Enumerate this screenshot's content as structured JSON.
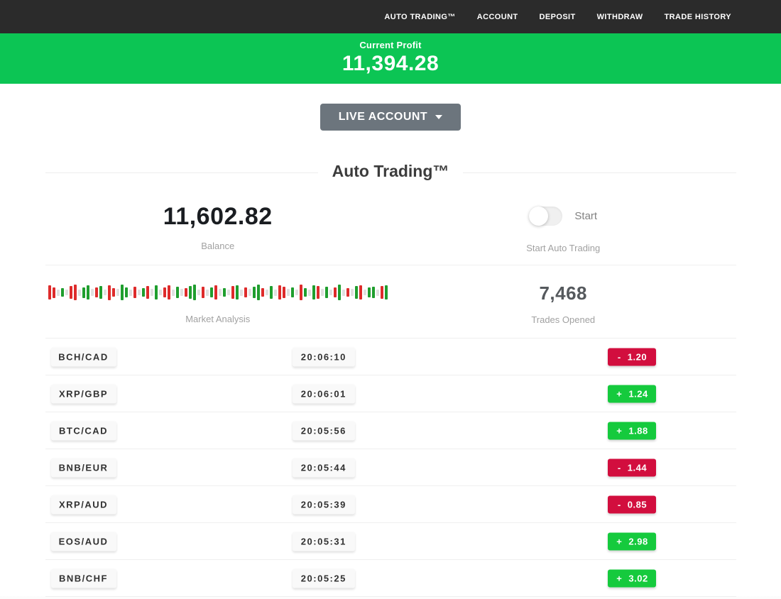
{
  "nav": {
    "items": [
      "AUTO TRADING™",
      "ACCOUNT",
      "DEPOSIT",
      "WITHDRAW",
      "TRADE HISTORY"
    ]
  },
  "profit_banner": {
    "label": "Current Profit",
    "value": "11,394.28"
  },
  "account_selector": {
    "label": "LIVE ACCOUNT"
  },
  "icons": {
    "account_caret": "chevron-down"
  },
  "section": {
    "title": "Auto Trading™"
  },
  "stats": {
    "balance": {
      "value": "11,602.82",
      "label": "Balance"
    },
    "auto_trading": {
      "toggle_label": "Start",
      "label": "Start Auto Trading",
      "state": "off"
    },
    "market_analysis": {
      "label": "Market Analysis",
      "bars": [
        [
          "r",
          20
        ],
        [
          "r",
          15
        ],
        [
          "n",
          9
        ],
        [
          "g",
          12
        ],
        [
          "n",
          8
        ],
        [
          "r",
          18
        ],
        [
          "r",
          22
        ],
        [
          "n",
          9
        ],
        [
          "g",
          15
        ],
        [
          "g",
          20
        ],
        [
          "n",
          10
        ],
        [
          "r",
          14
        ],
        [
          "g",
          18
        ],
        [
          "n",
          8
        ],
        [
          "r",
          21
        ],
        [
          "r",
          12
        ],
        [
          "n",
          10
        ],
        [
          "g",
          22
        ],
        [
          "g",
          14
        ],
        [
          "n",
          9
        ],
        [
          "r",
          16
        ],
        [
          "n",
          8
        ],
        [
          "g",
          12
        ],
        [
          "r",
          18
        ],
        [
          "n",
          10
        ],
        [
          "g",
          20
        ],
        [
          "n",
          8
        ],
        [
          "r",
          14
        ],
        [
          "r",
          20
        ],
        [
          "n",
          9
        ],
        [
          "g",
          16
        ],
        [
          "n",
          10
        ],
        [
          "r",
          12
        ],
        [
          "g",
          18
        ],
        [
          "g",
          22
        ],
        [
          "n",
          8
        ],
        [
          "r",
          16
        ],
        [
          "n",
          9
        ],
        [
          "g",
          14
        ],
        [
          "r",
          20
        ],
        [
          "n",
          10
        ],
        [
          "g",
          12
        ],
        [
          "n",
          8
        ],
        [
          "r",
          18
        ],
        [
          "g",
          20
        ],
        [
          "n",
          9
        ],
        [
          "r",
          14
        ],
        [
          "n",
          10
        ],
        [
          "g",
          16
        ],
        [
          "g",
          22
        ],
        [
          "r",
          12
        ],
        [
          "n",
          8
        ],
        [
          "g",
          18
        ],
        [
          "n",
          9
        ],
        [
          "r",
          20
        ],
        [
          "r",
          16
        ],
        [
          "n",
          10
        ],
        [
          "g",
          14
        ],
        [
          "n",
          8
        ],
        [
          "r",
          22
        ],
        [
          "g",
          12
        ],
        [
          "n",
          9
        ],
        [
          "g",
          20
        ],
        [
          "r",
          18
        ],
        [
          "n",
          10
        ],
        [
          "g",
          16
        ],
        [
          "n",
          8
        ],
        [
          "r",
          14
        ],
        [
          "g",
          22
        ],
        [
          "n",
          9
        ],
        [
          "r",
          12
        ],
        [
          "n",
          10
        ],
        [
          "g",
          18
        ],
        [
          "r",
          20
        ],
        [
          "n",
          8
        ],
        [
          "g",
          14
        ],
        [
          "g",
          16
        ],
        [
          "n",
          9
        ],
        [
          "r",
          18
        ],
        [
          "g",
          20
        ]
      ]
    },
    "trades_opened": {
      "value": "7,468",
      "label": "Trades Opened"
    }
  },
  "trades": [
    {
      "pair": "BCH/CAD",
      "time": "20:06:10",
      "sign": "-",
      "value": "1.20",
      "direction": "loss"
    },
    {
      "pair": "XRP/GBP",
      "time": "20:06:01",
      "sign": "+",
      "value": "1.24",
      "direction": "profit"
    },
    {
      "pair": "BTC/CAD",
      "time": "20:05:56",
      "sign": "+",
      "value": "1.88",
      "direction": "profit"
    },
    {
      "pair": "BNB/EUR",
      "time": "20:05:44",
      "sign": "-",
      "value": "1.44",
      "direction": "loss"
    },
    {
      "pair": "XRP/AUD",
      "time": "20:05:39",
      "sign": "-",
      "value": "0.85",
      "direction": "loss"
    },
    {
      "pair": "EOS/AUD",
      "time": "20:05:31",
      "sign": "+",
      "value": "2.98",
      "direction": "profit"
    },
    {
      "pair": "BNB/CHF",
      "time": "20:05:25",
      "sign": "+",
      "value": "3.02",
      "direction": "profit"
    }
  ],
  "colors": {
    "nav_bg": "#2b2b2b",
    "banner_green": "#0cc554",
    "button_gray": "#6c757d",
    "badge_green": "#15ca3d",
    "badge_red": "#d20e3e",
    "bar_red": "#de2b2b",
    "bar_green": "#1f9e2e",
    "bar_neutral": "#e0e0e0"
  }
}
